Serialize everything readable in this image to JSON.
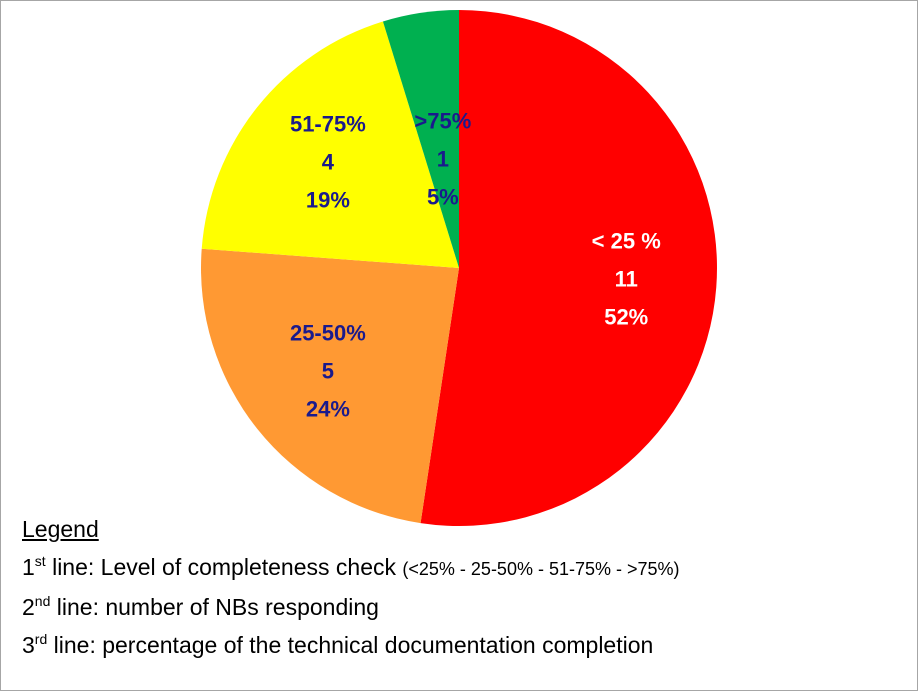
{
  "chart_data": {
    "type": "pie",
    "categories": [
      "< 25 %",
      "25-50%",
      "51-75%",
      ">75%"
    ],
    "values": [
      11,
      5,
      4,
      1
    ],
    "percent_labels": [
      "52%",
      "24%",
      "19%",
      "5%"
    ],
    "colors": [
      "#ff0000",
      "#ff9933",
      "#ffff00",
      "#00b050"
    ],
    "label_colors": [
      "#ffffff",
      "#1a1a8c",
      "#1a1a8c",
      "#1a1a8c"
    ],
    "legend_title": "Legend",
    "legend_lines": [
      {
        "ordinal": "1",
        "suffix": "st",
        "text": " line: Level of completeness check ",
        "note": "(<25% - 25-50% - 51-75% - >75%)"
      },
      {
        "ordinal": "2",
        "suffix": "nd",
        "text": " line: number of NBs responding"
      },
      {
        "ordinal": "3",
        "suffix": "rd",
        "text": " line: percentage of the technical documentation completion"
      }
    ]
  }
}
